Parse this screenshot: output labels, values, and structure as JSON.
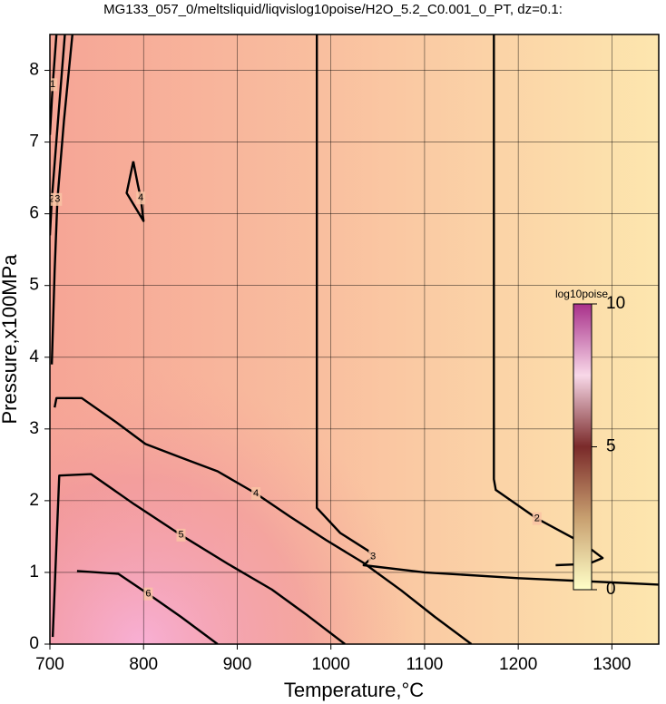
{
  "chart_data": {
    "type": "contour",
    "title": "MG133_057_0/meltsliquid/liqvislog10poise/H2O_5.2_C0.001_0_PT, dz=0.1:",
    "x_label": "Temperature,°C",
    "y_label": "Pressure,x100MPa",
    "xlim": [
      700,
      1350
    ],
    "ylim": [
      0,
      8.5
    ],
    "xticks": [
      700,
      800,
      900,
      1000,
      1100,
      1200,
      1300
    ],
    "yticks": [
      0,
      1,
      2,
      3,
      4,
      5,
      6,
      7,
      8
    ],
    "grid": true,
    "contours": [
      {
        "level": 1,
        "x": [
          707,
          703,
          700
        ],
        "y": [
          8.5,
          7.8,
          7.1
        ]
      },
      {
        "level": 2,
        "x": [
          716,
          708,
          702,
          700
        ],
        "y": [
          8.5,
          7.2,
          6.2,
          5.7
        ]
      },
      {
        "level": 3,
        "x": [
          724,
          715,
          708,
          705,
          702
        ],
        "y": [
          8.5,
          7.3,
          6.2,
          5.2,
          3.9
        ]
      },
      {
        "level": 2,
        "x": [
          1174,
          1174,
          1174,
          1176,
          1220,
          1270,
          1290,
          1275,
          1240
        ],
        "y": [
          8.5,
          5.2,
          2.3,
          2.15,
          1.75,
          1.4,
          1.2,
          1.12,
          1.1
        ]
      },
      {
        "level": 3,
        "x": [
          985,
          985,
          985,
          985,
          1010,
          1040,
          1045,
          1035,
          1100,
          1200,
          1300,
          1350
        ],
        "y": [
          8.5,
          4.4,
          1.9,
          1.9,
          1.55,
          1.3,
          1.22,
          1.1,
          1.0,
          0.92,
          0.86,
          0.83
        ]
      },
      {
        "level": 4,
        "x": [
          705,
          707,
          734,
          770,
          802,
          840,
          879,
          920,
          956,
          995,
          1034,
          1075,
          1111,
          1150
        ],
        "y": [
          3.3,
          3.43,
          3.43,
          3.1,
          2.79,
          2.6,
          2.41,
          2.1,
          1.78,
          1.45,
          1.14,
          0.75,
          0.38,
          0
        ]
      },
      {
        "level": 4,
        "x": [
          789,
          782,
          800,
          797,
          794,
          789
        ],
        "y": [
          6.73,
          6.29,
          5.9,
          6.22,
          6.4,
          6.73
        ]
      },
      {
        "level": 5,
        "x": [
          703,
          710,
          744,
          790,
          840,
          890,
          937,
          975,
          1015
        ],
        "y": [
          0.1,
          2.35,
          2.37,
          1.95,
          1.52,
          1.12,
          0.76,
          0.4,
          0
        ]
      },
      {
        "level": 6,
        "x": [
          729,
          773,
          805,
          840,
          879
        ],
        "y": [
          1.02,
          0.98,
          0.7,
          0.38,
          0
        ]
      }
    ],
    "colorbar": {
      "label": "log10poise",
      "lim": [
        0,
        10
      ],
      "ticks": [
        0,
        5,
        10
      ]
    }
  }
}
